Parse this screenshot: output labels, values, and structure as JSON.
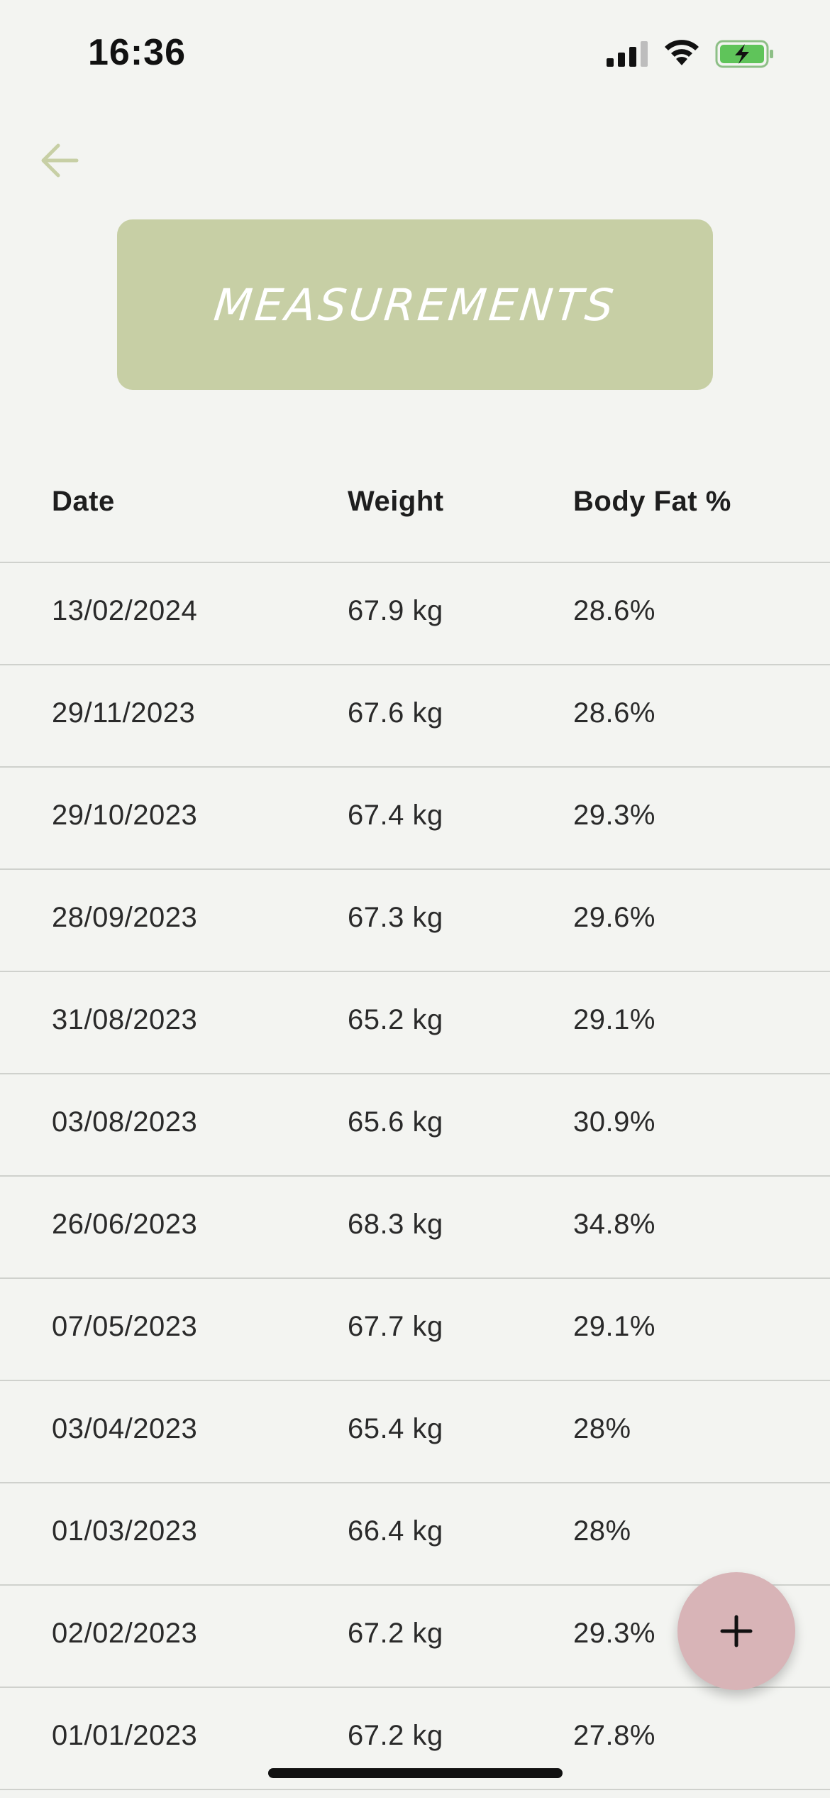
{
  "status_bar": {
    "time": "16:36",
    "icons": [
      "signal-icon",
      "wifi-icon",
      "battery-charging-icon"
    ]
  },
  "header": {
    "back_icon": "arrow-left-icon",
    "title": "MEASUREMENTS"
  },
  "table": {
    "columns": [
      "Date",
      "Weight",
      "Body Fat %"
    ],
    "rows": [
      {
        "date": "13/02/2024",
        "weight": "67.9 kg",
        "body_fat": "28.6%"
      },
      {
        "date": "29/11/2023",
        "weight": "67.6 kg",
        "body_fat": "28.6%"
      },
      {
        "date": "29/10/2023",
        "weight": "67.4 kg",
        "body_fat": "29.3%"
      },
      {
        "date": "28/09/2023",
        "weight": "67.3 kg",
        "body_fat": "29.6%"
      },
      {
        "date": "31/08/2023",
        "weight": "65.2 kg",
        "body_fat": "29.1%"
      },
      {
        "date": "03/08/2023",
        "weight": "65.6 kg",
        "body_fat": "30.9%"
      },
      {
        "date": "26/06/2023",
        "weight": "68.3 kg",
        "body_fat": "34.8%"
      },
      {
        "date": "07/05/2023",
        "weight": "67.7 kg",
        "body_fat": "29.1%"
      },
      {
        "date": "03/04/2023",
        "weight": "65.4 kg",
        "body_fat": "28%"
      },
      {
        "date": "01/03/2023",
        "weight": "66.4 kg",
        "body_fat": "28%"
      },
      {
        "date": "02/02/2023",
        "weight": "67.2 kg",
        "body_fat": "29.3%"
      },
      {
        "date": "01/01/2023",
        "weight": "67.2 kg",
        "body_fat": "27.8%"
      }
    ]
  },
  "fab": {
    "icon": "plus-icon"
  },
  "colors": {
    "background": "#f3f4f1",
    "banner": "#c7cfa5",
    "back_arrow": "#c7cfa5",
    "fab": "#d8b4b7",
    "battery": "#5fc45a",
    "divider": "#cfd1cd"
  }
}
